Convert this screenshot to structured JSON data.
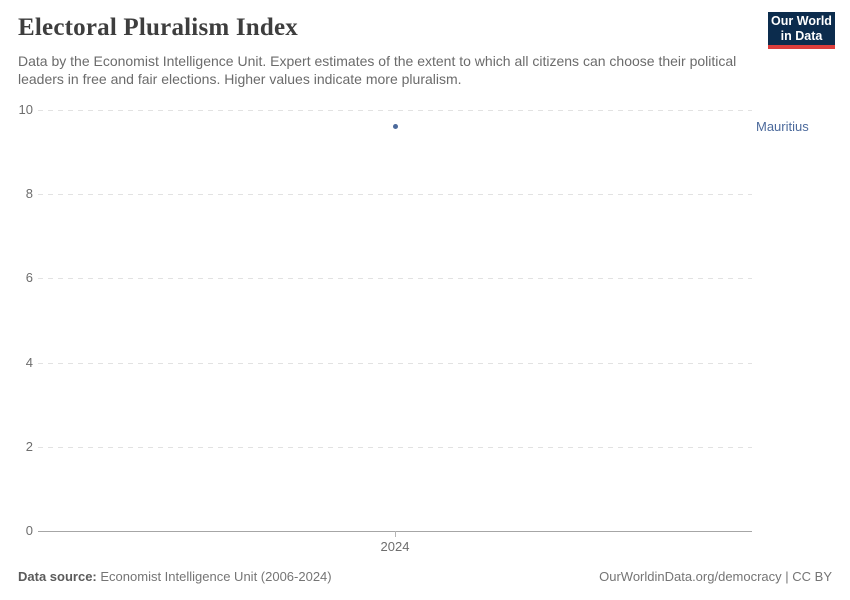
{
  "header": {
    "title": "Electoral Pluralism Index",
    "subtitle": "Data by the Economist Intelligence Unit. Expert estimates of the extent to which all citizens can choose their political leaders in free and fair elections. Higher values indicate more pluralism.",
    "logo_line1": "Our World",
    "logo_line2": "in Data",
    "logo_bg_color": "#0c2c4d",
    "logo_accent_color": "#dc3e3c"
  },
  "chart_data": {
    "type": "scatter",
    "title": "Electoral Pluralism Index",
    "series": [
      {
        "name": "Mauritius",
        "x": [
          2024
        ],
        "y": [
          9.6
        ],
        "color": "#4c6a9c"
      }
    ],
    "xticks": [
      "2024"
    ],
    "yticks": [
      0,
      2,
      4,
      6,
      8,
      10
    ],
    "ylim": [
      0,
      10
    ],
    "xlabel": "",
    "ylabel": "",
    "grid": "dashed-horizontal",
    "legend_position": "right-of-point",
    "entity_label": "Mauritius",
    "entity_label_color": "#4c6a9c"
  },
  "footer": {
    "source_label": "Data source:",
    "source_value": "Economist Intelligence Unit (2006-2024)",
    "right": "OurWorldinData.org/democracy | CC BY"
  }
}
